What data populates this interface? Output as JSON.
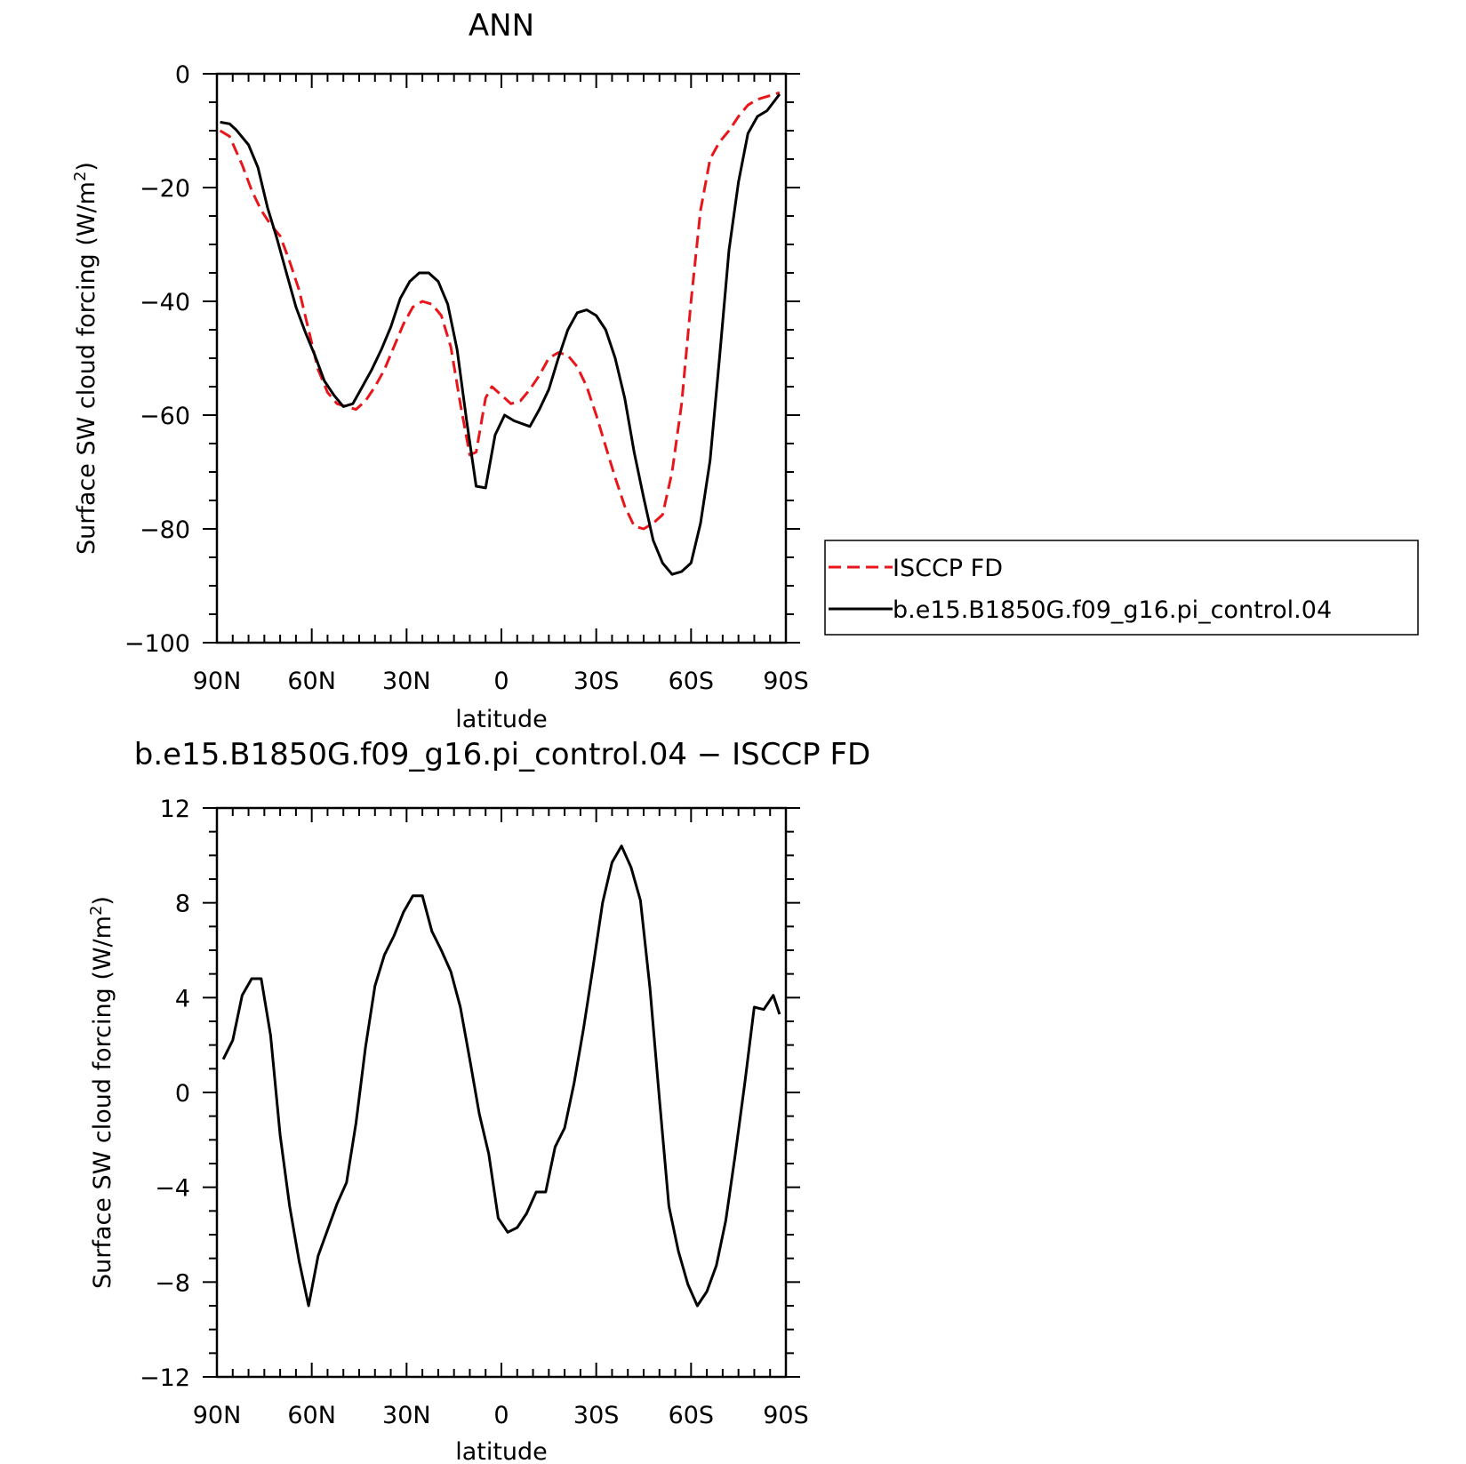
{
  "chart_data": [
    {
      "type": "line",
      "title": "ANN",
      "xlabel": "latitude",
      "ylabel": "Surface SW cloud forcing (W/m²)",
      "ylabel_main": "Surface SW cloud forcing (W/m",
      "ylabel_sup": "2",
      "ylabel_tail": ")",
      "xlim": [
        -90,
        90
      ],
      "ylim": [
        -100,
        0
      ],
      "x_ticks": [
        -90,
        -60,
        -30,
        0,
        30,
        60,
        90
      ],
      "x_tick_labels": [
        "90N",
        "60N",
        "30N",
        "0",
        "30S",
        "60S",
        "90S"
      ],
      "y_ticks": [
        -100,
        -80,
        -60,
        -40,
        -20,
        0
      ],
      "y_tick_labels": [
        "−100",
        "−80",
        "−60",
        "−40",
        "−20",
        "0"
      ],
      "legend": {
        "placement": "right",
        "entries": [
          "ISCCP FD",
          "b.e15.B1850G.f09_g16.pi_control.04"
        ]
      },
      "series": [
        {
          "name": "ISCCP FD",
          "color": "#e8161b",
          "dash": "dashed",
          "x": [
            -88,
            -85,
            -82,
            -79,
            -76,
            -73,
            -70,
            -67,
            -64,
            -61,
            -58,
            -55,
            -52,
            -49,
            -46,
            -43,
            -40,
            -37,
            -34,
            -31,
            -28,
            -25,
            -22,
            -19,
            -16,
            -13,
            -10,
            -7,
            -4,
            -1,
            2,
            5,
            8,
            11,
            14,
            17,
            20,
            23,
            26,
            29,
            32,
            35,
            38,
            41,
            44,
            47,
            50,
            53,
            56,
            59,
            62,
            65,
            68,
            71,
            74,
            77,
            80,
            83,
            86,
            88
          ],
          "y": [
            -10,
            -11.5,
            -15,
            -19.5,
            -24.5,
            -26.5,
            -29,
            -33,
            -38.5,
            -45.5,
            -52,
            -56,
            -58,
            -59,
            -57.5,
            -55,
            -52,
            -48,
            -44,
            -41,
            -40,
            -40.5,
            -42.5,
            -48,
            -58,
            -67,
            -66.5,
            -57,
            -55,
            -57,
            -58,
            -56.5,
            -53.5,
            -50,
            -49,
            -49.5,
            -51.5,
            -55,
            -60,
            -65.5,
            -71,
            -76,
            -79.5,
            -80,
            -78.5,
            -75.5,
            -66,
            -52,
            -38,
            -26,
            -15,
            -12,
            -10,
            -8,
            -6,
            -4.5,
            -3.8,
            -3.5,
            -3.2,
            -3
          ],
          "render_x": [
            -89,
            -86,
            -84,
            -82,
            -79,
            -76,
            -73,
            -70,
            -67,
            -64,
            -61,
            -58,
            -55,
            -52,
            -49,
            -46,
            -43,
            -40,
            -37,
            -34,
            -31,
            -28,
            -25,
            -22,
            -19,
            -16,
            -13,
            -10,
            -8,
            -5,
            -3,
            1,
            3,
            6,
            9,
            12,
            15,
            18,
            21,
            24,
            27,
            30,
            33,
            36,
            39,
            42,
            45,
            48,
            51,
            54,
            57,
            60,
            63,
            66,
            69,
            72,
            75,
            78,
            81,
            84,
            87,
            88
          ],
          "render_y": [
            -10,
            -11,
            -13.5,
            -16,
            -20.5,
            -24,
            -26.5,
            -28.5,
            -33,
            -38,
            -45,
            -52,
            -56,
            -58,
            -58.5,
            -59,
            -57.5,
            -55,
            -52,
            -48,
            -44,
            -41,
            -40,
            -40.5,
            -42.5,
            -48,
            -58,
            -67,
            -66.5,
            -57,
            -55,
            -57,
            -58,
            -57.5,
            -55.5,
            -53,
            -50,
            -49,
            -49.5,
            -51.5,
            -55,
            -60,
            -65.5,
            -71,
            -76,
            -79.5,
            -80,
            -79,
            -77.5,
            -70,
            -58,
            -40,
            -24,
            -15,
            -12,
            -10,
            -7.5,
            -5.5,
            -4.5,
            -4,
            -3.5,
            -3.3
          ]
        },
        {
          "name": "b.e15.B1850G.f09_g16.pi_control.04",
          "color": "#000000",
          "dash": "solid",
          "x": [
            -89,
            -86,
            -83,
            -80,
            -77,
            -74,
            -71,
            -68,
            -65,
            -62,
            -59,
            -56,
            -53,
            -50,
            -47,
            -44,
            -41,
            -38,
            -35,
            -32,
            -29,
            -26,
            -23,
            -20,
            -17,
            -14,
            -11,
            -8,
            -5,
            -2,
            1,
            4,
            7,
            10,
            13,
            16,
            19,
            22,
            25,
            28,
            31,
            34,
            37,
            40,
            43,
            46,
            49,
            52,
            55,
            58,
            61,
            64,
            67,
            70,
            73,
            76,
            79,
            82,
            85,
            88
          ],
          "y": [
            -8.5,
            -8.8,
            -10,
            -12,
            -16.5,
            -22.5,
            -28.5,
            -34.5,
            -41,
            -45.5,
            -49,
            -54,
            -57,
            -58.5,
            -58,
            -55,
            -52.5,
            -50,
            -46.5,
            -42.5,
            -39,
            -36.5,
            -35,
            -35,
            -37,
            -41,
            -50,
            -61.5,
            -72.5,
            -63,
            -60,
            -61,
            -62,
            -59,
            -56,
            -52,
            -47,
            -43.5,
            -42,
            -42.5,
            -45,
            -50,
            -57,
            -66.5,
            -74.5,
            -82,
            -85.5,
            -88,
            -87.5,
            -86,
            -79,
            -68,
            -50,
            -32,
            -19,
            -11,
            -8,
            -6.5,
            -3.8,
            -3
          ],
          "render_x": [
            -89,
            -86,
            -84,
            -80,
            -77,
            -74,
            -71,
            -68,
            -65,
            -62,
            -59,
            -56,
            -53,
            -50,
            -47,
            -44,
            -41,
            -38,
            -35,
            -32,
            -29,
            -26,
            -23,
            -20,
            -17,
            -14,
            -11,
            -8,
            -5,
            -2,
            1,
            4,
            9,
            12,
            15,
            18,
            21,
            24,
            27,
            30,
            33,
            36,
            39,
            42,
            45,
            48,
            51,
            54,
            57,
            60,
            63,
            66,
            69,
            72,
            75,
            78,
            81,
            84,
            88
          ],
          "render_y": [
            -8.5,
            -8.8,
            -9.8,
            -12.5,
            -16.5,
            -23.5,
            -29,
            -35,
            -41,
            -45.5,
            -49.5,
            -54,
            -56.5,
            -58.5,
            -58,
            -55,
            -52,
            -48.5,
            -44.5,
            -39.5,
            -36.5,
            -35,
            -35,
            -36.5,
            -40.5,
            -48.5,
            -61,
            -72.5,
            -72.8,
            -63.5,
            -60,
            -61,
            -62,
            -59,
            -55.5,
            -50,
            -45,
            -42,
            -41.5,
            -42.5,
            -45,
            -50,
            -57,
            -66.5,
            -74.5,
            -82,
            -86,
            -88,
            -87.5,
            -86,
            -79,
            -68,
            -50,
            -31,
            -19,
            -10.5,
            -7.5,
            -6.5,
            -3.6,
            -3.2,
            -3
          ]
        }
      ]
    },
    {
      "type": "line",
      "title": "b.e15.B1850G.f09_g16.pi_control.04 − ISCCP FD",
      "xlabel": "latitude",
      "ylabel": "Surface SW cloud forcing (W/m²)",
      "ylabel_main": "Surface SW cloud forcing (W/m",
      "ylabel_sup": "2",
      "ylabel_tail": ")",
      "xlim": [
        -90,
        90
      ],
      "ylim": [
        -12,
        12
      ],
      "x_ticks": [
        -90,
        -60,
        -30,
        0,
        30,
        60,
        90
      ],
      "x_tick_labels": [
        "90N",
        "60N",
        "30N",
        "0",
        "30S",
        "60S",
        "90S"
      ],
      "y_ticks": [
        -12,
        -8,
        -4,
        0,
        4,
        8,
        12
      ],
      "y_tick_labels": [
        "−12",
        "−8",
        "−4",
        "0",
        "4",
        "8",
        "12"
      ],
      "series": [
        {
          "color": "#000000",
          "dash": "solid",
          "x": [
            -88,
            -85,
            -82,
            -79,
            -76,
            -73,
            -70,
            -67,
            -64,
            -61,
            -58,
            -55,
            -52,
            -49,
            -46,
            -43,
            -40,
            -37,
            -34,
            -31,
            -28,
            -25,
            -22,
            -19,
            -16,
            -13,
            -10,
            -7,
            -4,
            -1,
            2,
            5,
            8,
            11,
            14,
            17,
            20,
            23,
            26,
            29,
            32,
            35,
            38,
            41,
            44,
            47,
            50,
            53,
            56,
            59,
            62,
            65,
            68,
            71,
            74,
            77,
            80,
            83,
            86,
            88
          ],
          "y": [
            1.4,
            2.2,
            4.1,
            4.8,
            4.8,
            2.4,
            -1.8,
            -4.8,
            -7.1,
            -9.0,
            -6.9,
            -5.8,
            -4.7,
            -3.8,
            -1.3,
            1.9,
            4.5,
            5.8,
            6.6,
            7.6,
            8.3,
            8.3,
            6.8,
            6.0,
            5.1,
            3.6,
            1.4,
            -0.9,
            -2.6,
            -5.3,
            -5.9,
            -5.7,
            -5.1,
            -4.2,
            -4.2,
            -2.3,
            -1.5,
            0.4,
            2.7,
            5.3,
            8.0,
            9.7,
            10.4,
            9.5,
            8.1,
            4.4,
            -0.3,
            -4.8,
            -6.7,
            -8.1,
            -9.0,
            -8.4,
            -7.3,
            -5.4,
            -2.6,
            0.4,
            3.6,
            3.5,
            4.1,
            3.3
          ]
        }
      ]
    }
  ]
}
